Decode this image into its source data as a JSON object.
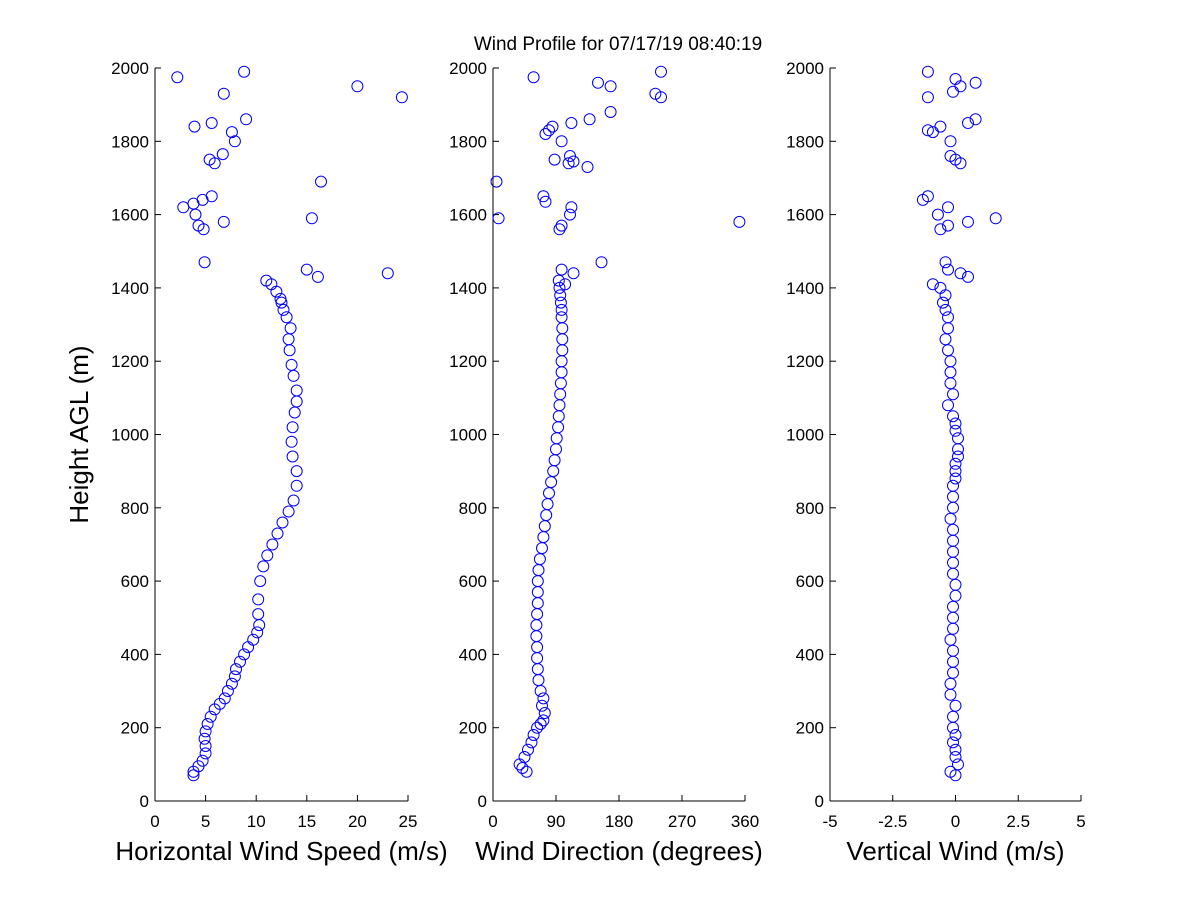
{
  "title": "Wind Profile for  07/17/19 08:40:19",
  "colors": {
    "marker": "#0000ff",
    "axis": "#000000",
    "background": "#ffffff"
  },
  "chart_data": [
    {
      "type": "scatter",
      "xlabel": "Horizontal Wind Speed (m/s)",
      "ylabel": "Height AGL (m)",
      "xlim": [
        0,
        25
      ],
      "ylim": [
        0,
        2000
      ],
      "xticks": [
        "0",
        "5",
        "10",
        "15",
        "20",
        "25"
      ],
      "yticks": [
        "0",
        "200",
        "400",
        "600",
        "800",
        "1000",
        "1200",
        "1400",
        "1600",
        "1800",
        "2000"
      ],
      "xtick_values": [
        0,
        5,
        10,
        15,
        20,
        25
      ],
      "ytick_values": [
        0,
        200,
        400,
        600,
        800,
        1000,
        1200,
        1400,
        1600,
        1800,
        2000
      ],
      "grid": false,
      "profile_x": [
        3.8,
        3.8,
        4.3,
        4.7,
        5.0,
        5.0,
        4.9,
        5.0,
        5.2,
        5.5,
        5.9,
        6.4,
        6.9,
        7.2,
        7.6,
        7.9,
        8.0,
        8.4,
        8.8,
        9.2,
        9.7,
        10.1,
        10.3,
        10.2,
        10.2,
        10.4,
        10.7,
        11.1,
        11.6,
        12.1,
        12.6,
        13.2,
        13.7,
        14.0,
        14.0,
        13.6,
        13.5,
        13.6,
        13.8,
        14.0,
        14.0,
        13.7,
        13.5,
        13.3,
        13.2,
        13.4,
        13.0,
        12.7,
        12.5,
        12.4,
        12.0,
        11.5,
        11.0
      ],
      "profile_y": [
        70,
        80,
        95,
        110,
        130,
        150,
        170,
        190,
        210,
        230,
        250,
        265,
        280,
        300,
        320,
        340,
        360,
        380,
        400,
        420,
        440,
        460,
        480,
        510,
        550,
        600,
        640,
        670,
        700,
        730,
        760,
        790,
        820,
        860,
        900,
        940,
        980,
        1020,
        1060,
        1090,
        1120,
        1160,
        1190,
        1230,
        1260,
        1290,
        1320,
        1340,
        1360,
        1370,
        1390,
        1410,
        1420
      ],
      "scatter_x": [
        2.2,
        8.8,
        6.8,
        3.9,
        5.6,
        9.0,
        7.6,
        7.9,
        6.7,
        5.4,
        5.9,
        2.8,
        3.8,
        4.7,
        5.6,
        4.0,
        4.3,
        4.8,
        6.8,
        4.9,
        20.0,
        24.4,
        16.4,
        15.5,
        15.0,
        16.1,
        23.0
      ],
      "scatter_y": [
        1975,
        1990,
        1930,
        1840,
        1850,
        1860,
        1825,
        1800,
        1765,
        1750,
        1740,
        1620,
        1630,
        1640,
        1650,
        1600,
        1570,
        1560,
        1580,
        1470,
        1950,
        1920,
        1690,
        1590,
        1450,
        1430,
        1440
      ]
    },
    {
      "type": "scatter",
      "xlabel": "Wind Direction (degrees)",
      "xlim": [
        0,
        360
      ],
      "ylim": [
        0,
        2000
      ],
      "xticks": [
        "0",
        "90",
        "180",
        "270",
        "360"
      ],
      "yticks": [
        "0",
        "200",
        "400",
        "600",
        "800",
        "1000",
        "1200",
        "1400",
        "1600",
        "1800",
        "2000"
      ],
      "xtick_values": [
        0,
        90,
        180,
        270,
        360
      ],
      "ytick_values": [
        0,
        200,
        400,
        600,
        800,
        1000,
        1200,
        1400,
        1600,
        1800,
        2000
      ],
      "grid": false,
      "profile_x": [
        48,
        42,
        38,
        45,
        50,
        55,
        58,
        63,
        68,
        72,
        74,
        70,
        72,
        68,
        65,
        64,
        63,
        63,
        62,
        62,
        63,
        64,
        64,
        64,
        65,
        67,
        70,
        72,
        74,
        76,
        78,
        80,
        83,
        86,
        88,
        90,
        91,
        93,
        94,
        95,
        96,
        97,
        98,
        98,
        99,
        99,
        99,
        98,
        98,
        97,
        96,
        95,
        94
      ],
      "profile_y": [
        80,
        90,
        100,
        120,
        140,
        160,
        180,
        200,
        210,
        220,
        240,
        260,
        280,
        300,
        330,
        360,
        390,
        420,
        450,
        480,
        510,
        540,
        570,
        600,
        630,
        660,
        690,
        720,
        750,
        780,
        810,
        840,
        870,
        900,
        930,
        960,
        990,
        1020,
        1050,
        1080,
        1110,
        1140,
        1170,
        1200,
        1230,
        1260,
        1290,
        1320,
        1340,
        1360,
        1380,
        1400,
        1420
      ],
      "scatter_x": [
        58,
        240,
        150,
        168,
        232,
        240,
        168,
        138,
        112,
        85,
        80,
        75,
        98,
        110,
        115,
        88,
        108,
        135,
        5,
        8,
        112,
        110,
        72,
        75,
        98,
        95,
        352,
        155,
        98,
        115,
        103
      ],
      "scatter_y": [
        1975,
        1990,
        1960,
        1950,
        1930,
        1920,
        1880,
        1860,
        1850,
        1840,
        1830,
        1820,
        1800,
        1760,
        1745,
        1750,
        1740,
        1730,
        1690,
        1590,
        1620,
        1600,
        1650,
        1635,
        1570,
        1560,
        1580,
        1470,
        1450,
        1440,
        1410
      ]
    },
    {
      "type": "scatter",
      "xlabel": "Vertical Wind (m/s)",
      "xlim": [
        -5,
        5
      ],
      "ylim": [
        0,
        2000
      ],
      "xticks": [
        "-5",
        "-2.5",
        "0",
        "2.5",
        "5"
      ],
      "yticks": [
        "0",
        "200",
        "400",
        "600",
        "800",
        "1000",
        "1200",
        "1400",
        "1600",
        "1800",
        "2000"
      ],
      "xtick_values": [
        -5,
        -2.5,
        0,
        2.5,
        5
      ],
      "ytick_values": [
        0,
        200,
        400,
        600,
        800,
        1000,
        1200,
        1400,
        1600,
        1800,
        2000
      ],
      "grid": false,
      "profile_x": [
        0.0,
        -0.2,
        0.1,
        0.0,
        0.0,
        -0.1,
        0.0,
        -0.1,
        -0.1,
        0.0,
        -0.2,
        -0.2,
        -0.1,
        -0.1,
        -0.1,
        -0.2,
        -0.1,
        -0.1,
        -0.1,
        0.0,
        0.0,
        -0.1,
        -0.1,
        -0.1,
        -0.1,
        -0.1,
        -0.2,
        -0.1,
        -0.1,
        -0.1,
        0.0,
        0.0,
        0.0,
        0.1,
        0.1,
        0.1,
        0.0,
        0.0,
        -0.1,
        -0.3,
        -0.1,
        -0.2,
        -0.2,
        -0.2,
        -0.3,
        -0.4,
        -0.3,
        -0.3,
        -0.4,
        -0.5,
        -0.4,
        -0.6,
        -0.9
      ],
      "profile_y": [
        70,
        80,
        100,
        120,
        140,
        160,
        180,
        200,
        230,
        260,
        290,
        320,
        350,
        380,
        410,
        440,
        470,
        500,
        530,
        560,
        590,
        620,
        650,
        680,
        710,
        740,
        770,
        800,
        830,
        860,
        880,
        900,
        920,
        940,
        960,
        990,
        1010,
        1030,
        1050,
        1080,
        1110,
        1140,
        1170,
        1200,
        1230,
        1260,
        1290,
        1320,
        1340,
        1360,
        1380,
        1400,
        1410
      ],
      "scatter_x": [
        -1.1,
        0.0,
        0.8,
        0.2,
        -0.1,
        -1.1,
        0.5,
        0.8,
        -1.1,
        -0.6,
        -0.9,
        -0.2,
        -0.2,
        0.0,
        0.2,
        -1.3,
        -1.1,
        -0.3,
        -0.7,
        1.6,
        0.5,
        -0.3,
        -0.6,
        -0.4,
        -0.3,
        0.2,
        0.5
      ],
      "scatter_y": [
        1990,
        1970,
        1960,
        1950,
        1935,
        1920,
        1850,
        1860,
        1830,
        1840,
        1825,
        1800,
        1760,
        1750,
        1740,
        1640,
        1650,
        1620,
        1600,
        1590,
        1580,
        1570,
        1560,
        1470,
        1450,
        1440,
        1430
      ]
    }
  ]
}
